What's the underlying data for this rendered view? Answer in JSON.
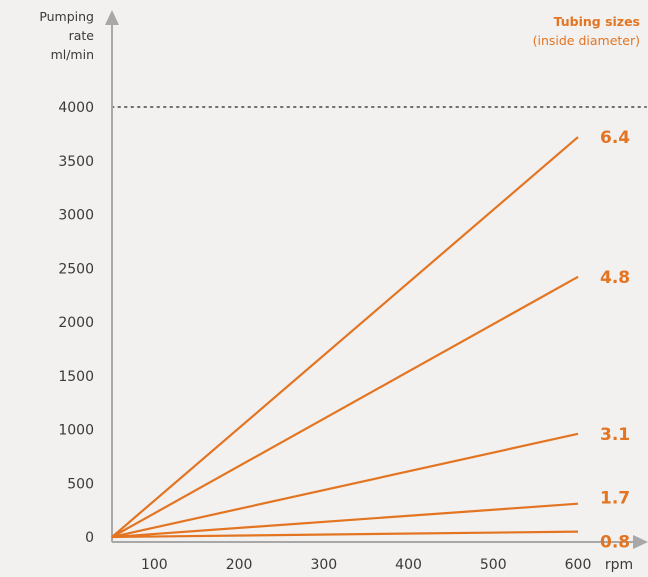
{
  "chart_data": {
    "type": "line",
    "ylabel": [
      "Pumping",
      "rate",
      "ml/min"
    ],
    "xlabel": "rpm",
    "legend": {
      "title": "Tubing sizes",
      "subtitle": "(inside diameter)"
    },
    "xlim": [
      50,
      600
    ],
    "ylim": [
      0,
      4000
    ],
    "x_ticks": [
      100,
      200,
      300,
      400,
      500,
      600
    ],
    "y_ticks": [
      0,
      500,
      1000,
      1500,
      2000,
      2500,
      3000,
      3500,
      4000
    ],
    "reference_line": {
      "y": 4000,
      "style": "dotted"
    },
    "series": [
      {
        "name": "6.4",
        "x": [
          50,
          600
        ],
        "y": [
          0,
          3720
        ]
      },
      {
        "name": "4.8",
        "x": [
          50,
          600
        ],
        "y": [
          0,
          2420
        ]
      },
      {
        "name": "3.1",
        "x": [
          50,
          600
        ],
        "y": [
          0,
          960
        ]
      },
      {
        "name": "1.7",
        "x": [
          50,
          600
        ],
        "y": [
          0,
          310
        ]
      },
      {
        "name": "0.8",
        "x": [
          50,
          600
        ],
        "y": [
          0,
          50
        ]
      }
    ],
    "colors": {
      "line": "#e37522",
      "label": "#e37522",
      "axis": "#a8a8a8",
      "text": "#3a3a3a"
    }
  }
}
